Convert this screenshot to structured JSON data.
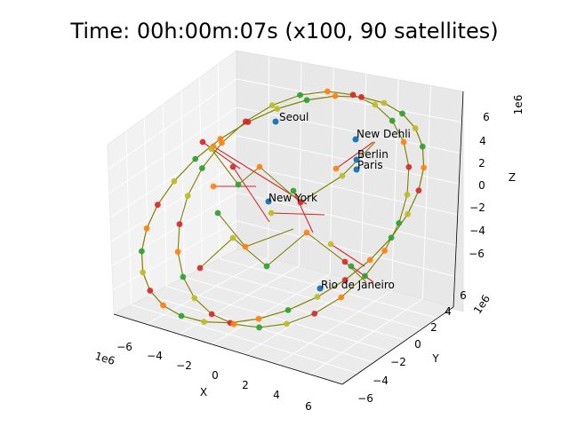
{
  "chart_data": {
    "type": "scatter",
    "projection": "3d",
    "title": "Time: 00h:00m:07s (x100, 90 satellites)",
    "xlabel": "X",
    "ylabel": "Y",
    "zlabel": "Z",
    "x_scale_label": "1e6",
    "y_scale_label": "1e6",
    "z_scale_label": "1e6",
    "xlim": [
      -7000000,
      7000000
    ],
    "ylim": [
      -7000000,
      7000000
    ],
    "zlim": [
      -7000000,
      7000000
    ],
    "x_ticks": [
      "−6",
      "−4",
      "−2",
      "0",
      "2",
      "4",
      "6"
    ],
    "y_ticks": [
      "−6",
      "−4",
      "−2",
      "0",
      "2",
      "4",
      "6"
    ],
    "z_ticks": [
      "−6",
      "−4",
      "−2",
      "0",
      "2",
      "4",
      "6"
    ],
    "grid": true,
    "cities": [
      {
        "name": "Seoul",
        "x": -3100000,
        "y": 4100000,
        "z": 3800000
      },
      {
        "name": "New Dehli",
        "x": 1200000,
        "y": 6100000,
        "z": 3000000
      },
      {
        "name": "Berlin",
        "x": 3800000,
        "y": 900000,
        "z": 5000000
      },
      {
        "name": "Paris",
        "x": 4200000,
        "y": 200000,
        "z": 4800000
      },
      {
        "name": "New York",
        "x": 1300000,
        "y": -4700000,
        "z": 4100000
      },
      {
        "name": "Rio de Janeiro",
        "x": 4300000,
        "y": -4000000,
        "z": -2400000
      }
    ],
    "colors": {
      "city": "#1f77b4",
      "satellite_light": "#bcbd22",
      "satellite_green": "#2ca02c",
      "satellite_orange": "#ff7f0e",
      "satellite_red": "#d62728",
      "link_olive": "#808000",
      "link_red": "#d62728"
    }
  }
}
